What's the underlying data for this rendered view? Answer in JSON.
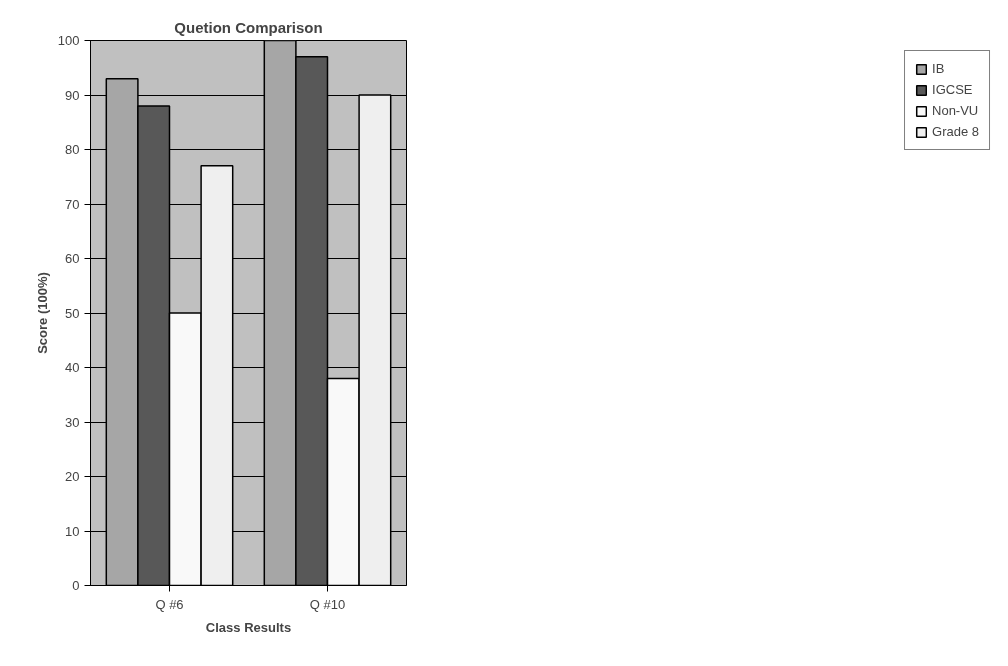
{
  "chart_data": {
    "type": "bar",
    "title": "Quetion Comparison",
    "xlabel": "Class Results",
    "ylabel": "Score (100%)",
    "categories": [
      "Q #6",
      "Q #10"
    ],
    "series": [
      {
        "name": "IB",
        "color": "#a6a6a6",
        "values": [
          93,
          100
        ]
      },
      {
        "name": "IGCSE",
        "color": "#585858",
        "values": [
          88,
          97
        ]
      },
      {
        "name": "Non-VU",
        "color": "#f9f9f9",
        "values": [
          50,
          38
        ]
      },
      {
        "name": "Grade 8",
        "color": "#efefef",
        "values": [
          77,
          90
        ]
      }
    ],
    "ylim": [
      0,
      100
    ],
    "yticks": [
      0,
      10,
      20,
      30,
      40,
      50,
      60,
      70,
      80,
      90,
      100
    ],
    "grid": "y",
    "legend": "right"
  }
}
